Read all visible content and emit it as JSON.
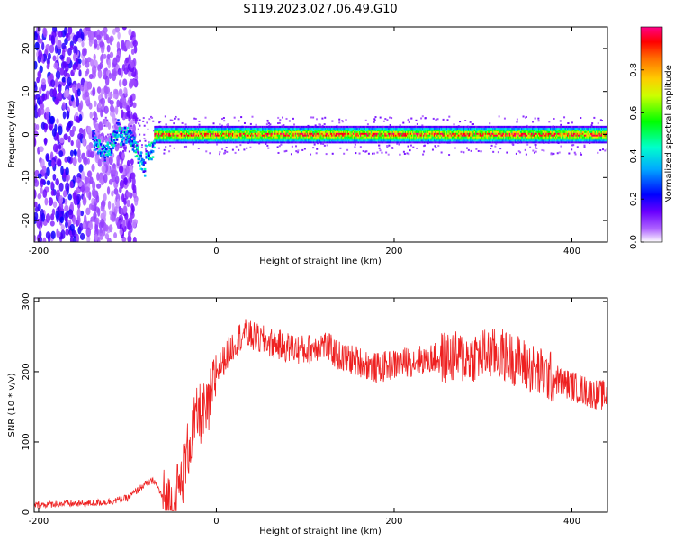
{
  "figure_title": "S119.2023.027.06.49.G10",
  "colors": {
    "snr_line": "#ee2020",
    "axes": "#000000",
    "colormap": [
      "#ffffff",
      "#8c00ff",
      "#0000ff",
      "#00ffff",
      "#00ff00",
      "#ffff00",
      "#ff8800",
      "#ff0000",
      "#ff0088"
    ]
  },
  "chart_data": [
    {
      "type": "heatmap",
      "title": "",
      "xlabel": "Height of straight line (km)",
      "ylabel": "Frequency (Hz)",
      "xlim": [
        -205,
        440
      ],
      "ylim": [
        -25,
        25
      ],
      "xticks": [
        "-200",
        "0",
        "200",
        "400"
      ],
      "yticks": [
        "-20",
        "-10",
        "0",
        "10",
        "20"
      ],
      "colorbar": {
        "label": "Normalized spectral amplitude",
        "range": [
          0,
          1
        ],
        "ticks": [
          "0.0",
          "0.2",
          "0.4",
          "0.6",
          "0.8"
        ]
      },
      "features": {
        "noise_region_x": [
          -205,
          -90
        ],
        "signal_band_center_hz": 0,
        "signal_band_halfwidth_hz": 1.5,
        "signal_onset_x": -140
      }
    },
    {
      "type": "line",
      "title": "",
      "xlabel": "Height of straight line (km)",
      "ylabel": "SNR (10 * v/v)",
      "xlim": [
        -205,
        440
      ],
      "ylim": [
        0,
        305
      ],
      "xticks": [
        "-200",
        "0",
        "200",
        "400"
      ],
      "yticks": [
        "0",
        "100",
        "200",
        "300"
      ],
      "grid": false,
      "series": [
        {
          "x": [
            -205,
            -180,
            -150,
            -120,
            -100,
            -80,
            -70,
            -60,
            -50,
            -40,
            -30,
            -20,
            -10,
            0,
            20,
            30,
            50,
            80,
            100,
            120,
            140,
            160,
            180,
            200,
            220,
            250,
            280,
            300,
            320,
            340,
            360,
            380,
            400,
            420,
            440
          ],
          "values": [
            10,
            12,
            12,
            15,
            20,
            40,
            45,
            20,
            12,
            40,
            100,
            140,
            140,
            200,
            240,
            255,
            245,
            235,
            230,
            240,
            220,
            215,
            205,
            210,
            215,
            220,
            220,
            225,
            225,
            215,
            200,
            190,
            180,
            170,
            165
          ]
        }
      ]
    }
  ]
}
